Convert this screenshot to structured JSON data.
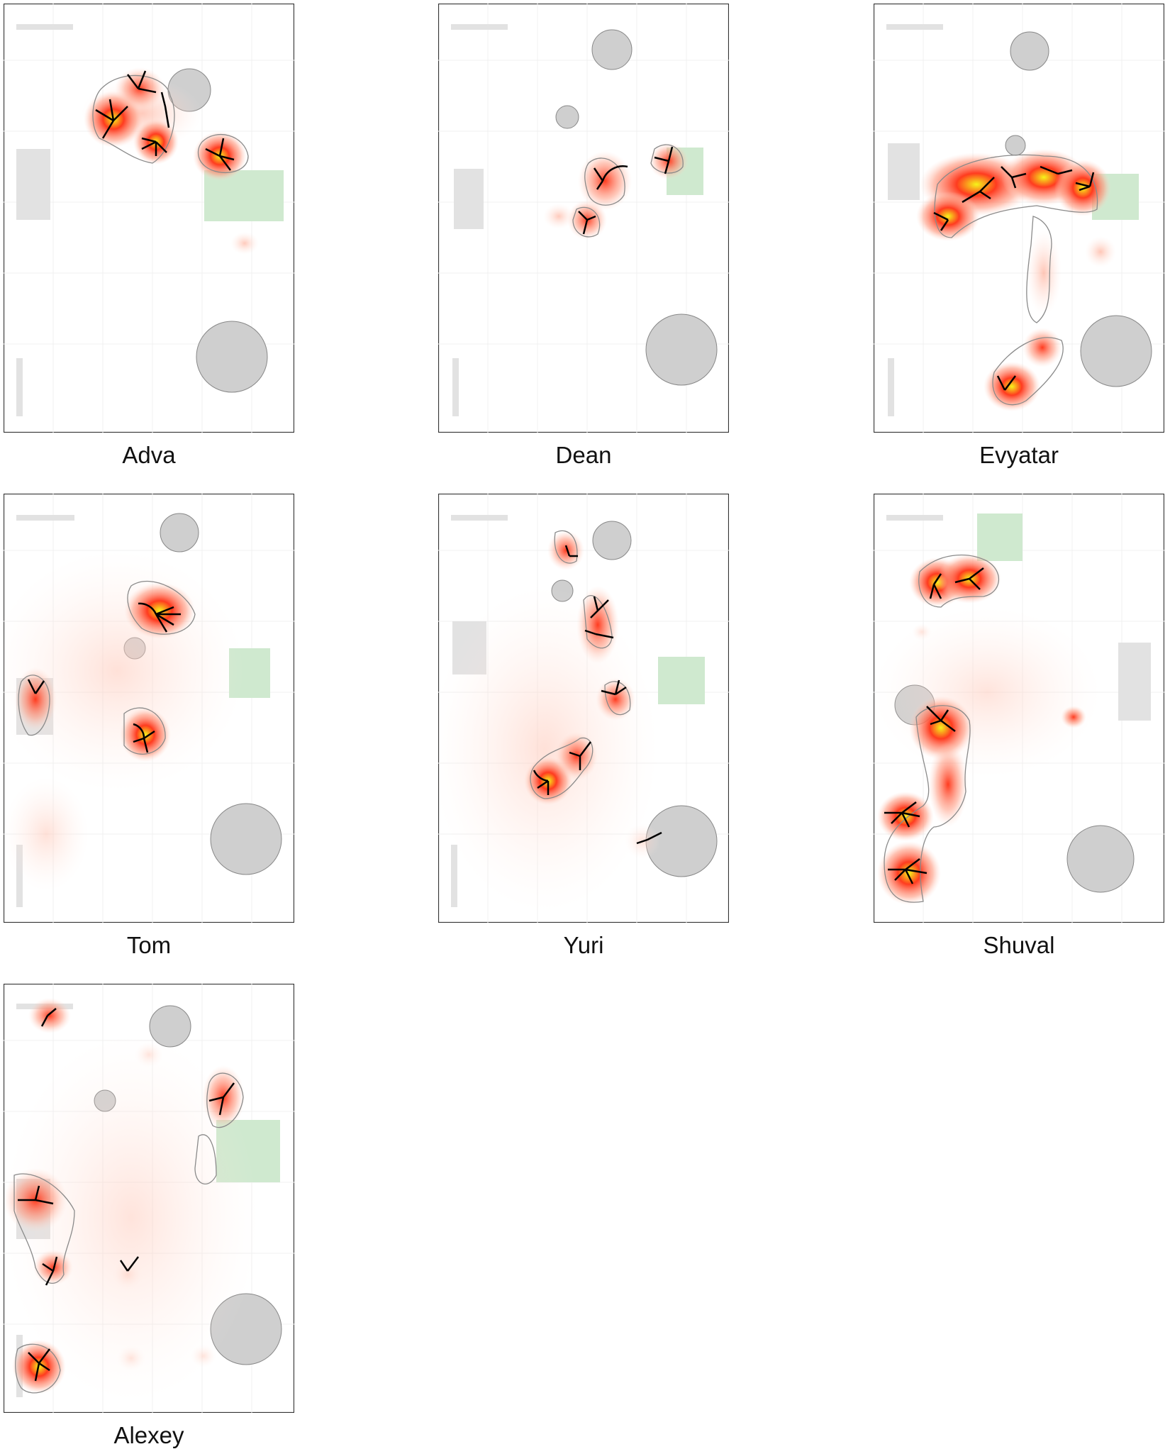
{
  "panels": [
    {
      "name": "Adva"
    },
    {
      "name": "Dean"
    },
    {
      "name": "Evyatar"
    },
    {
      "name": "Tom"
    },
    {
      "name": "Yuri"
    },
    {
      "name": "Shuval"
    },
    {
      "name": "Alexey"
    }
  ],
  "colors": {
    "heat_low": "#ffd9cc",
    "heat_mid": "#ff3b1f",
    "heat_high": "#f5f51a",
    "contour": "#8a8a8a",
    "circle_obstacle": "#cfcfcf",
    "wall": "#e2e2e2",
    "goal_zone": "#cfe9cf",
    "fan_glyph": "#000000",
    "grid": "#eeeeee"
  }
}
